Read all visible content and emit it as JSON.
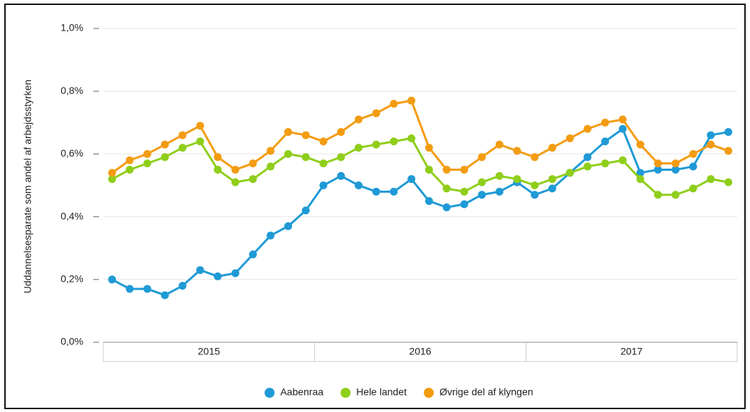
{
  "chart_data": {
    "type": "line",
    "y_label": "Uddannelsesparate som andel af arbejdsstyrken",
    "categories": [
      null,
      null,
      null,
      null,
      null,
      null,
      null,
      null,
      null,
      null,
      null,
      null,
      null,
      null,
      null,
      null,
      null,
      null,
      null,
      null,
      null,
      null,
      null,
      null,
      null,
      null,
      null,
      null,
      null,
      null,
      null,
      null,
      null,
      null,
      null,
      null
    ],
    "x_groups": [
      "2015",
      "2016",
      "2017"
    ],
    "ylim": [
      0,
      1.0
    ],
    "yticks": [
      {
        "value": 0,
        "label": "0,0%"
      },
      {
        "value": 0.2,
        "label": "0,2%"
      },
      {
        "value": 0.4,
        "label": "0,4%"
      },
      {
        "value": 0.6,
        "label": "0,6%"
      },
      {
        "value": 0.8,
        "label": "0,8%"
      },
      {
        "value": 1.0,
        "label": "1,0%"
      }
    ],
    "grid": true,
    "legend": "bottom",
    "series": [
      {
        "name": "Aabenraa",
        "color": "#1f9ad6",
        "values": [
          0.2,
          0.17,
          0.17,
          0.15,
          0.18,
          0.23,
          0.21,
          0.22,
          0.28,
          0.34,
          0.37,
          0.42,
          0.5,
          0.53,
          0.5,
          0.48,
          0.48,
          0.52,
          0.45,
          0.43,
          0.44,
          0.47,
          0.48,
          0.51,
          0.47,
          0.49,
          0.54,
          0.59,
          0.64,
          0.68,
          0.54,
          0.55,
          0.55,
          0.56,
          0.66,
          0.67
        ]
      },
      {
        "name": "Hele landet",
        "color": "#8fce1a",
        "values": [
          0.52,
          0.55,
          0.57,
          0.59,
          0.62,
          0.64,
          0.55,
          0.51,
          0.52,
          0.56,
          0.6,
          0.59,
          0.57,
          0.59,
          0.62,
          0.63,
          0.64,
          0.65,
          0.55,
          0.49,
          0.48,
          0.51,
          0.53,
          0.52,
          0.5,
          0.52,
          0.54,
          0.56,
          0.57,
          0.58,
          0.52,
          0.47,
          0.47,
          0.49,
          0.52,
          0.51
        ]
      },
      {
        "name": "Øvrige del af klyngen",
        "color": "#f39c12",
        "values": [
          0.54,
          0.58,
          0.6,
          0.63,
          0.66,
          0.69,
          0.59,
          0.55,
          0.57,
          0.61,
          0.67,
          0.66,
          0.64,
          0.67,
          0.71,
          0.73,
          0.76,
          0.77,
          0.62,
          0.55,
          0.55,
          0.59,
          0.63,
          0.61,
          0.59,
          0.62,
          0.65,
          0.68,
          0.7,
          0.71,
          0.63,
          0.57,
          0.57,
          0.6,
          0.63,
          0.61
        ]
      }
    ]
  }
}
